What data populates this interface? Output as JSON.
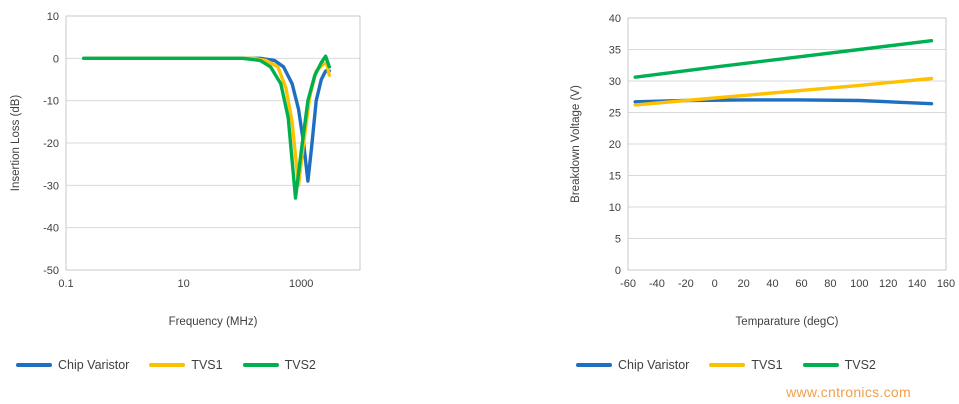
{
  "watermark": {
    "text": "www.cntronics.com",
    "color": "#F0A04B"
  },
  "style": {
    "grid_color": "#D9D9D9",
    "border_color": "#C9C9C9",
    "text_color": "#404040"
  },
  "chart_data": [
    {
      "type": "line",
      "title": "",
      "xlabel": "Frequency (MHz)",
      "ylabel": "Insertion Loss (dB)",
      "xscale": "log",
      "xlim": [
        0.1,
        10000
      ],
      "ylim": [
        -50,
        10
      ],
      "xticks": [
        0.1,
        10,
        1000
      ],
      "yticks": [
        10,
        0,
        -10,
        -20,
        -30,
        -40,
        -50
      ],
      "grid": "horizontal",
      "legend_position": "bottom",
      "series": [
        {
          "name": "Chip Varistor",
          "color": "#1F6FC0",
          "x": [
            0.2,
            10,
            200,
            350,
            500,
            700,
            900,
            1100,
            1300,
            1500,
            1800,
            2200,
            2600,
            3000
          ],
          "y": [
            0,
            0,
            0,
            -0.5,
            -2,
            -6,
            -12,
            -20,
            -29,
            -21,
            -10,
            -5,
            -3,
            -3
          ]
        },
        {
          "name": "TVS1",
          "color": "#FFC000",
          "x": [
            0.2,
            10,
            150,
            250,
            400,
            550,
            700,
            900,
            1100,
            1400,
            1800,
            2300,
            2700,
            3000
          ],
          "y": [
            0,
            0,
            0,
            -0.5,
            -2,
            -7,
            -15,
            -30,
            -20,
            -9,
            -3,
            -1.5,
            -1,
            -4
          ]
        },
        {
          "name": "TVS2",
          "color": "#00B050",
          "x": [
            0.2,
            10,
            100,
            200,
            300,
            450,
            600,
            800,
            1000,
            1300,
            1700,
            2200,
            2600,
            3000
          ],
          "y": [
            0,
            0,
            0,
            -0.5,
            -2,
            -6,
            -14,
            -33,
            -22,
            -10,
            -4,
            -1,
            0.5,
            -2
          ]
        }
      ]
    },
    {
      "type": "line",
      "title": "",
      "xlabel": "Temparature (degC)",
      "ylabel": "Breakdown Voltage (V)",
      "xscale": "linear",
      "xlim": [
        -60,
        160
      ],
      "ylim": [
        0,
        40
      ],
      "xticks": [
        -60,
        -40,
        -20,
        0,
        20,
        40,
        60,
        80,
        100,
        120,
        140,
        160
      ],
      "yticks": [
        0,
        5,
        10,
        15,
        20,
        25,
        30,
        35,
        40
      ],
      "grid": "horizontal",
      "legend_position": "bottom",
      "series": [
        {
          "name": "Chip Varistor",
          "color": "#1F6FC0",
          "x": [
            -55,
            -20,
            20,
            60,
            100,
            130,
            150
          ],
          "y": [
            26.7,
            26.9,
            27.0,
            27.0,
            26.9,
            26.6,
            26.4
          ]
        },
        {
          "name": "TVS1",
          "color": "#FFC000",
          "x": [
            -55,
            0,
            50,
            100,
            150
          ],
          "y": [
            26.2,
            27.3,
            28.3,
            29.3,
            30.4
          ]
        },
        {
          "name": "TVS2",
          "color": "#00B050",
          "x": [
            -55,
            0,
            50,
            100,
            150
          ],
          "y": [
            30.6,
            32.2,
            33.6,
            35.0,
            36.4
          ]
        }
      ]
    }
  ]
}
